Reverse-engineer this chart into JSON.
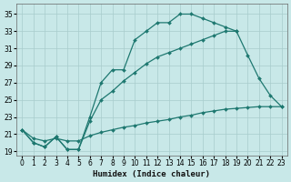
{
  "xlabel": "Humidex (Indice chaleur)",
  "bg_color": "#c8e8e8",
  "line_color": "#1e7870",
  "grid_color": "#a8cccc",
  "xlim": [
    -0.5,
    23.5
  ],
  "ylim": [
    18.5,
    36.2
  ],
  "xticks": [
    0,
    1,
    2,
    3,
    4,
    5,
    6,
    7,
    8,
    9,
    10,
    11,
    12,
    13,
    14,
    15,
    16,
    17,
    18,
    19,
    20,
    21,
    22,
    23
  ],
  "yticks": [
    19,
    21,
    23,
    25,
    27,
    29,
    31,
    33,
    35
  ],
  "curve1_x": [
    0,
    1,
    2,
    3,
    4,
    5,
    6,
    7,
    8,
    9,
    10,
    11,
    12,
    13,
    14,
    15,
    16,
    17,
    18,
    19
  ],
  "curve1_y": [
    21.5,
    20.0,
    19.5,
    20.7,
    19.2,
    19.2,
    23.0,
    27.0,
    28.5,
    28.5,
    32.0,
    33.0,
    34.0,
    34.0,
    35.0,
    35.0,
    34.5,
    34.0,
    33.5,
    33.0
  ],
  "curve2_x": [
    0,
    1,
    2,
    3,
    4,
    5,
    6,
    7,
    8,
    9,
    10,
    11,
    12,
    13,
    14,
    15,
    16,
    17,
    18,
    19,
    20,
    21,
    22,
    23
  ],
  "curve2_y": [
    21.5,
    20.0,
    19.5,
    20.7,
    19.2,
    19.2,
    22.5,
    25.0,
    26.0,
    27.2,
    28.2,
    29.2,
    30.0,
    30.5,
    31.0,
    31.5,
    32.0,
    32.5,
    33.0,
    33.0,
    30.2,
    27.5,
    25.5,
    24.2
  ],
  "curve3_x": [
    0,
    1,
    2,
    3,
    4,
    5,
    6,
    7,
    8,
    9,
    10,
    11,
    12,
    13,
    14,
    15,
    16,
    17,
    18,
    19,
    20,
    21,
    22,
    23
  ],
  "curve3_y": [
    21.5,
    20.5,
    20.2,
    20.5,
    20.2,
    20.2,
    20.8,
    21.2,
    21.5,
    21.8,
    22.0,
    22.3,
    22.5,
    22.7,
    23.0,
    23.2,
    23.5,
    23.7,
    23.9,
    24.0,
    24.1,
    24.2,
    24.2,
    24.2
  ],
  "marker": "D",
  "markersize": 2.0,
  "linewidth": 0.9,
  "tick_fontsize": 5.5,
  "xlabel_fontsize": 6.5
}
